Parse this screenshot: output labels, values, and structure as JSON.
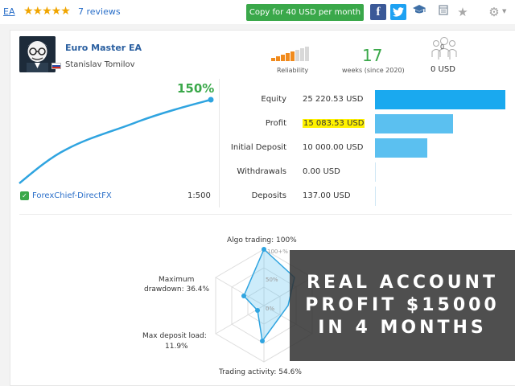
{
  "header": {
    "ea_link": "EA",
    "stars": "★★★★★",
    "reviews": "7 reviews",
    "copy_button": "Copy for 40 USD per month"
  },
  "product": {
    "name": "Euro Master EA",
    "author": "Stanislav Tomilov"
  },
  "metrics": {
    "reliability_label": "Reliability",
    "weeks_value": "17",
    "weeks_label": "weeks (since 2020)",
    "subscribers_count": "0",
    "subscribers_value": "0 USD"
  },
  "growth": {
    "percent": "150%",
    "broker": "ForexChief-DirectFX",
    "leverage": "1:500"
  },
  "stats": [
    {
      "label": "Equity",
      "value": "25 220.53 USD",
      "fraction": 1.0,
      "highlight": false
    },
    {
      "label": "Profit",
      "value": "15 083.53 USD",
      "fraction": 0.6,
      "highlight": true
    },
    {
      "label": "Initial Deposit",
      "value": "10 000.00 USD",
      "fraction": 0.4,
      "highlight": false
    },
    {
      "label": "Withdrawals",
      "value": "0.00 USD",
      "fraction": 0.0,
      "highlight": false
    },
    {
      "label": "Deposits",
      "value": "137.00 USD",
      "fraction": 0.005,
      "highlight": false
    }
  ],
  "radar": {
    "algo": "Algo trading: 100%",
    "drawdown_1": "Maximum",
    "drawdown_2": "drawdown: 36.4%",
    "load_1": "Max deposit load:",
    "load_2": "11.9%",
    "activity": "Trading activity: 54.6%",
    "tick_100": "100+%",
    "tick_50": "50%",
    "tick_0": "0%"
  },
  "overlay": {
    "line1": "REAL ACCOUNT",
    "line2": "PROFIT $15000",
    "line3": "IN 4 MONTHS"
  },
  "colors": {
    "green": "#3aa84a",
    "blue_bar": "#5bc0f0",
    "link": "#2a6fc9",
    "highlight": "#fff200"
  }
}
